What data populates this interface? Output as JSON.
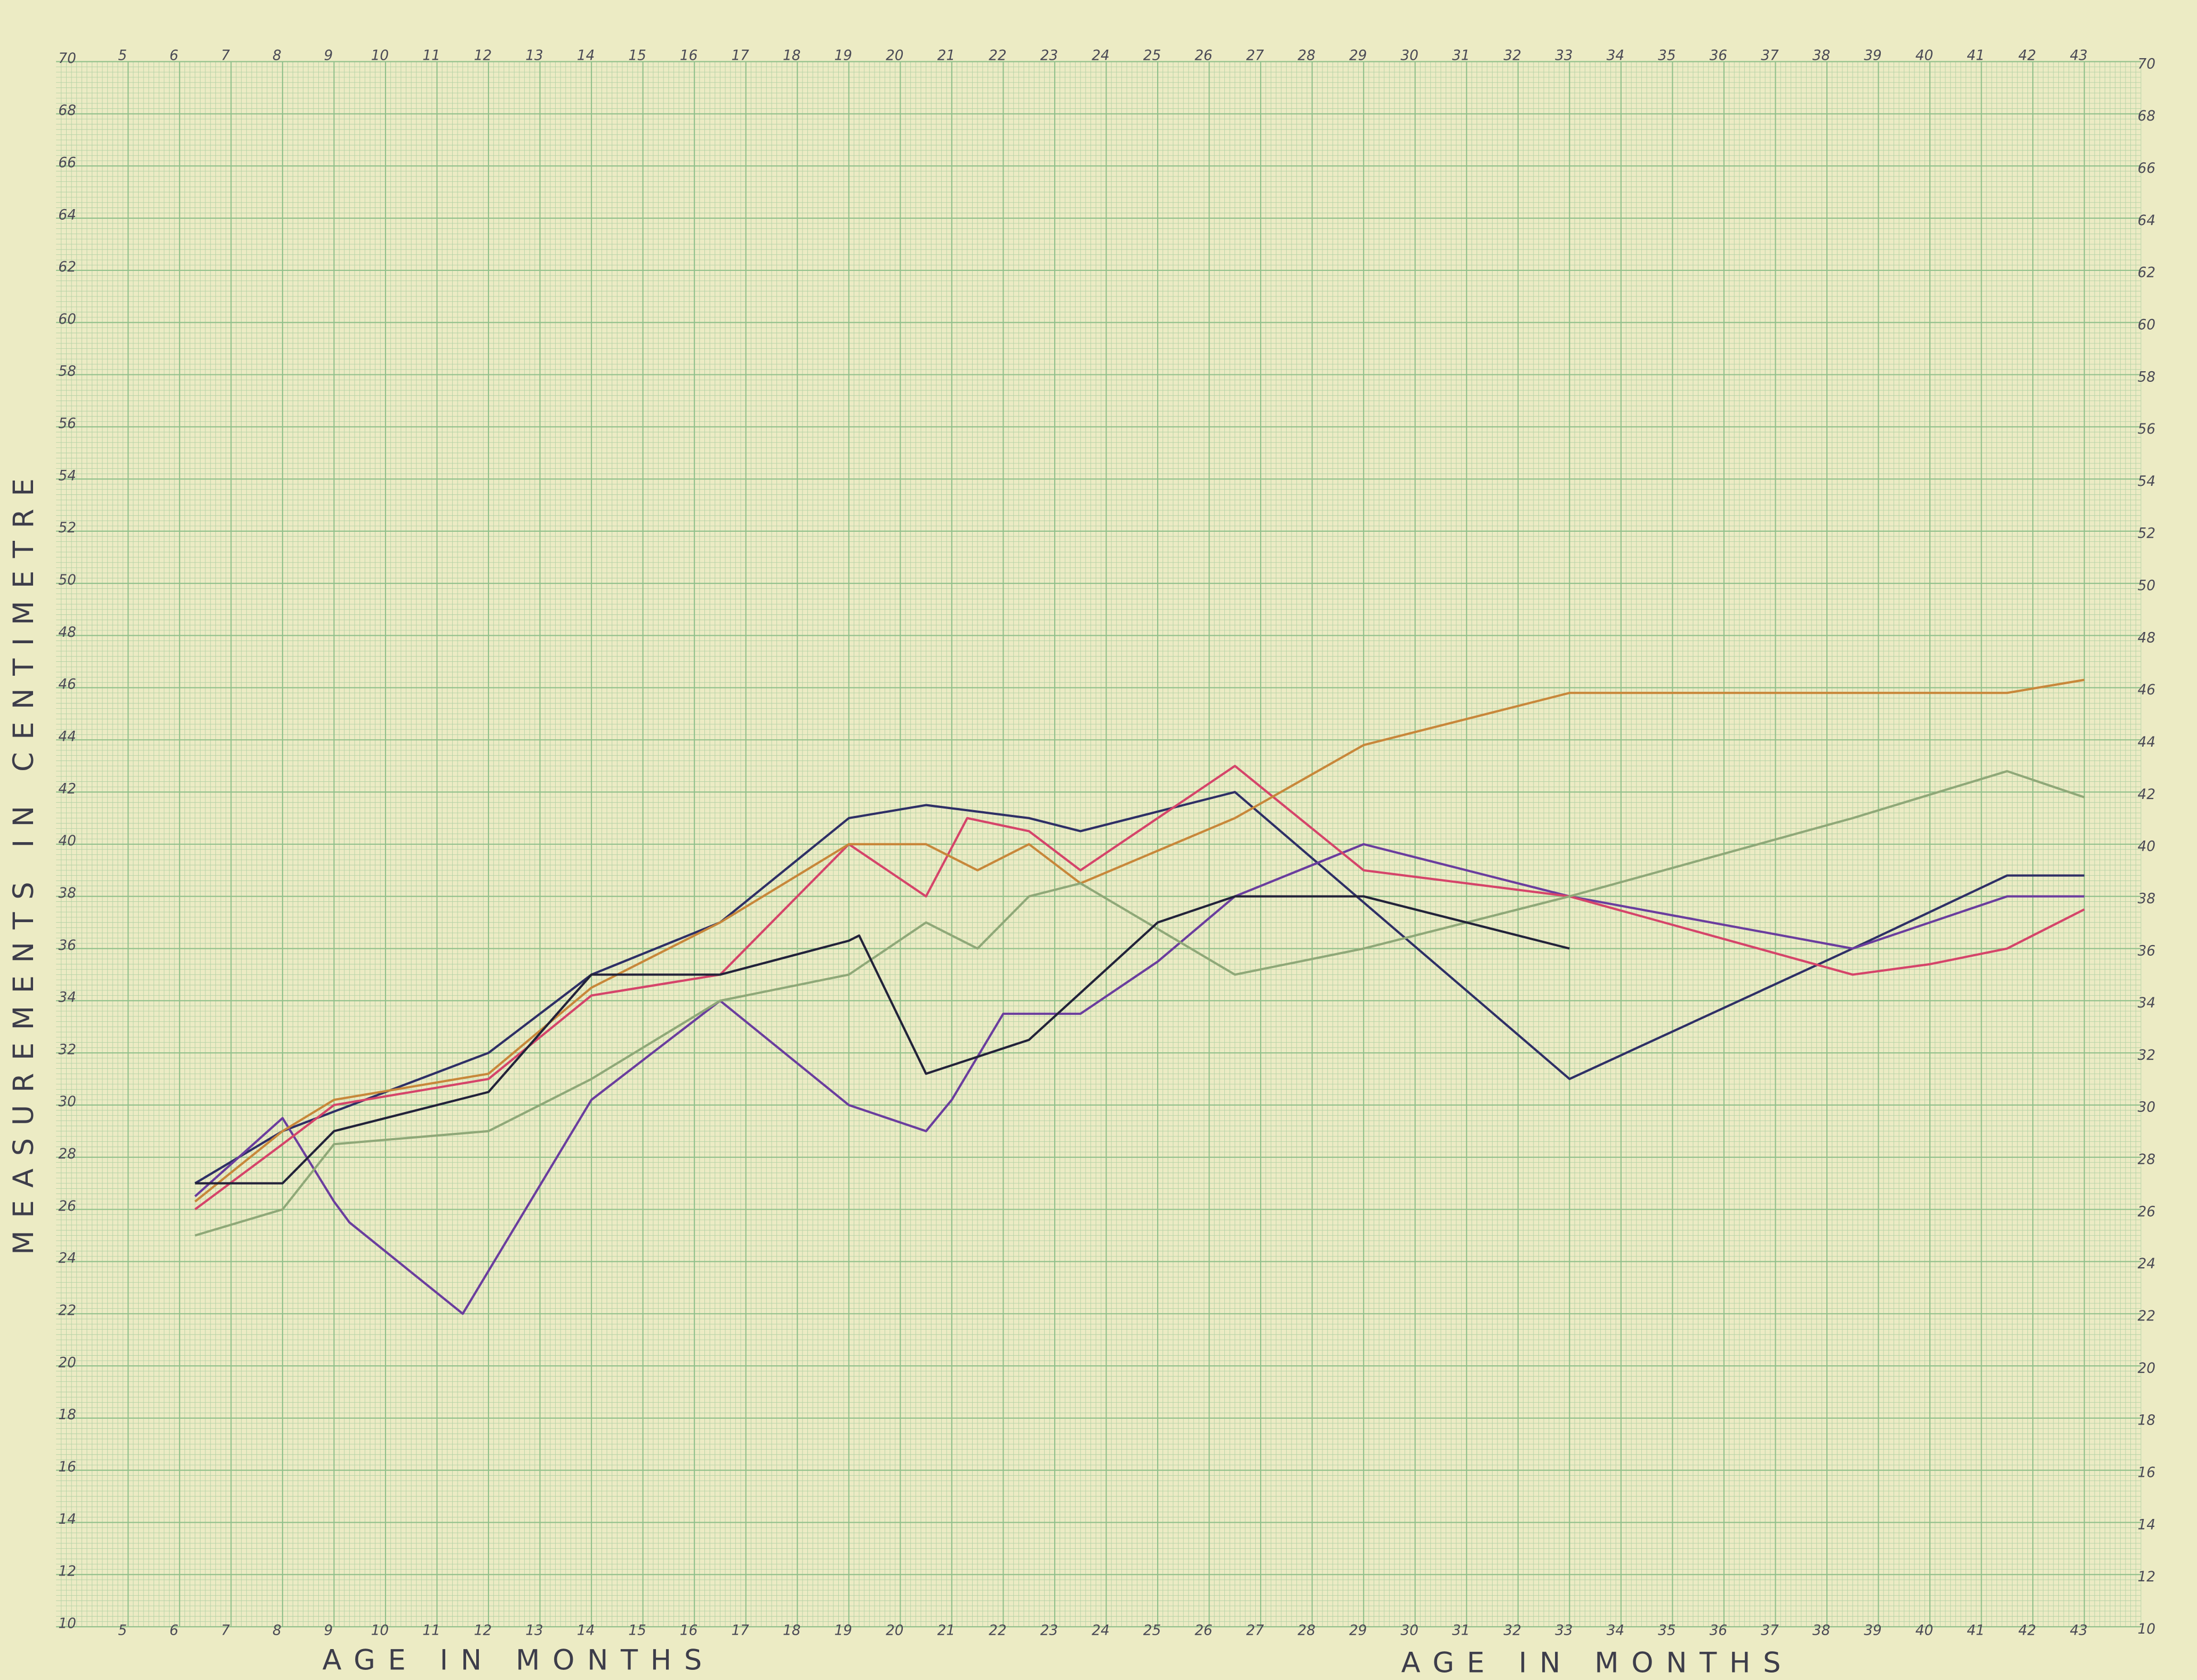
{
  "chart_data": {
    "type": "line",
    "ylabel": "MEASUREMENTS IN CENTIMETRE",
    "xlabel": "AGE IN MONTHS",
    "xlim": [
      3.6,
      44.1
    ],
    "xticks": [
      5,
      6,
      7,
      8,
      9,
      10,
      11,
      12,
      13,
      14,
      15,
      16,
      17,
      18,
      19,
      20,
      21,
      22,
      23,
      24,
      25,
      26,
      27,
      28,
      29,
      30,
      31,
      32,
      33,
      34,
      35,
      36,
      37,
      38,
      39,
      40,
      41,
      42,
      43
    ],
    "ylim": [
      10,
      70
    ],
    "yticks": [
      10,
      12,
      14,
      16,
      18,
      20,
      22,
      24,
      26,
      28,
      30,
      32,
      34,
      36,
      38,
      40,
      42,
      44,
      46,
      48,
      50,
      52,
      54,
      56,
      58,
      60,
      62,
      64,
      66,
      68,
      70
    ],
    "grid": true,
    "series": [
      {
        "color": "#2e2f66",
        "x": [
          6.3,
          8,
          12,
          14,
          16.5,
          19,
          20.5,
          22.5,
          23.5,
          26.5,
          33,
          38.5,
          41.5,
          43
        ],
        "values": [
          27,
          29,
          32,
          35,
          37,
          41,
          41.5,
          41,
          40.5,
          42,
          31,
          36,
          38.8,
          38.8
        ]
      },
      {
        "color": "#6a3d9e",
        "x": [
          6.3,
          8,
          9,
          9.3,
          11.5,
          14,
          16.5,
          18,
          19,
          20.2,
          20.5,
          21,
          22,
          23.5,
          25,
          26.5,
          29,
          33,
          38.5,
          41.5,
          43
        ],
        "values": [
          26.5,
          29.5,
          26.3,
          25.5,
          22,
          30.2,
          34,
          31.6,
          30,
          29.2,
          29,
          30.2,
          33.5,
          33.5,
          35.5,
          38,
          40,
          38,
          36,
          38,
          38
        ]
      },
      {
        "color": "#d5446a",
        "x": [
          6.3,
          8,
          9,
          12,
          14,
          16.5,
          19,
          20.5,
          21.3,
          22.5,
          23.5,
          26.5,
          29,
          33,
          38.5,
          40,
          41.5,
          43
        ],
        "values": [
          26,
          28.5,
          30,
          31,
          34.2,
          35,
          40,
          38,
          41,
          40.5,
          39,
          43,
          39,
          38,
          35,
          35.4,
          36,
          37.5
        ]
      },
      {
        "color": "#c8873a",
        "x": [
          6.3,
          8,
          9,
          12,
          14,
          16.5,
          19,
          20.5,
          21.5,
          22.5,
          23.5,
          26.5,
          29,
          33,
          41.5,
          43
        ],
        "values": [
          26.3,
          29,
          30.2,
          31.2,
          34.5,
          37,
          40,
          40,
          39,
          40,
          38.5,
          41,
          43.8,
          45.8,
          45.8,
          46.3
        ]
      },
      {
        "color": "#8fa878",
        "x": [
          6.3,
          8,
          9,
          12,
          14,
          16.5,
          19,
          20.5,
          21.5,
          22.5,
          23.5,
          26.5,
          29,
          33,
          38.5,
          41.5,
          43
        ],
        "values": [
          25,
          26,
          28.5,
          29,
          31,
          34,
          35,
          37,
          36,
          38,
          38.5,
          35,
          36,
          38,
          41,
          42.8,
          41.8
        ]
      },
      {
        "color": "#22223a",
        "x": [
          6.3,
          8,
          9,
          12,
          14,
          16.5,
          19,
          19.2,
          20.5,
          22.5,
          25,
          26.5,
          29,
          33
        ],
        "values": [
          27,
          27,
          29,
          30.5,
          35,
          35,
          36.3,
          36.5,
          31.2,
          32.5,
          37,
          38,
          38,
          36
        ]
      }
    ]
  }
}
